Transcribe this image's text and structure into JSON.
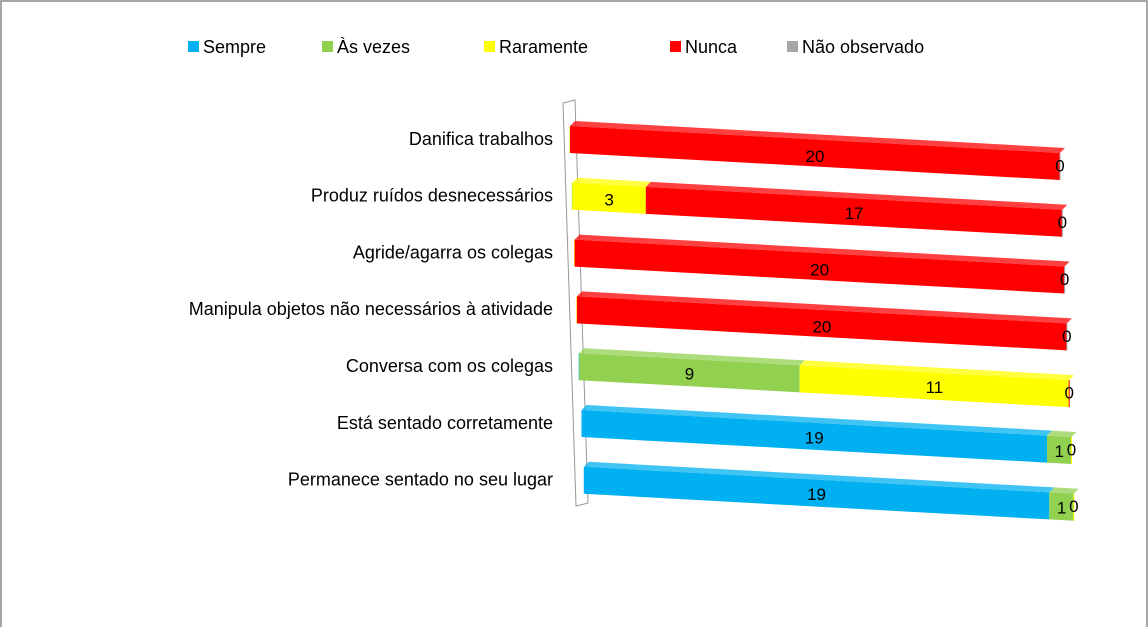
{
  "chart_data": {
    "type": "bar3d",
    "categories": [
      "Danifica trabalhos",
      "Produz ruídos desnecessários",
      "Agride/agarra os colegas",
      "Manipula objetos não necessários à atividade",
      "Conversa com os colegas",
      "Está sentado corretamente",
      "Permanece sentado no seu lugar"
    ],
    "series": [
      {
        "name": "Sempre",
        "color": "#00b0f0",
        "values": [
          null,
          null,
          null,
          null,
          0,
          19,
          19
        ]
      },
      {
        "name": "Às vezes",
        "color": "#92d050",
        "values": [
          null,
          0,
          null,
          null,
          9,
          1,
          1
        ]
      },
      {
        "name": "Raramente",
        "color": "#ffff00",
        "values": [
          0,
          3,
          0,
          0,
          11,
          0,
          0
        ]
      },
      {
        "name": "Nunca",
        "color": "#ff0000",
        "values": [
          20,
          17,
          20,
          20,
          0,
          null,
          null
        ]
      },
      {
        "name": "Não observado",
        "color": "#a6a6a6",
        "values": [
          0,
          0,
          0,
          0,
          null,
          null,
          null
        ]
      }
    ],
    "legend": "top"
  }
}
